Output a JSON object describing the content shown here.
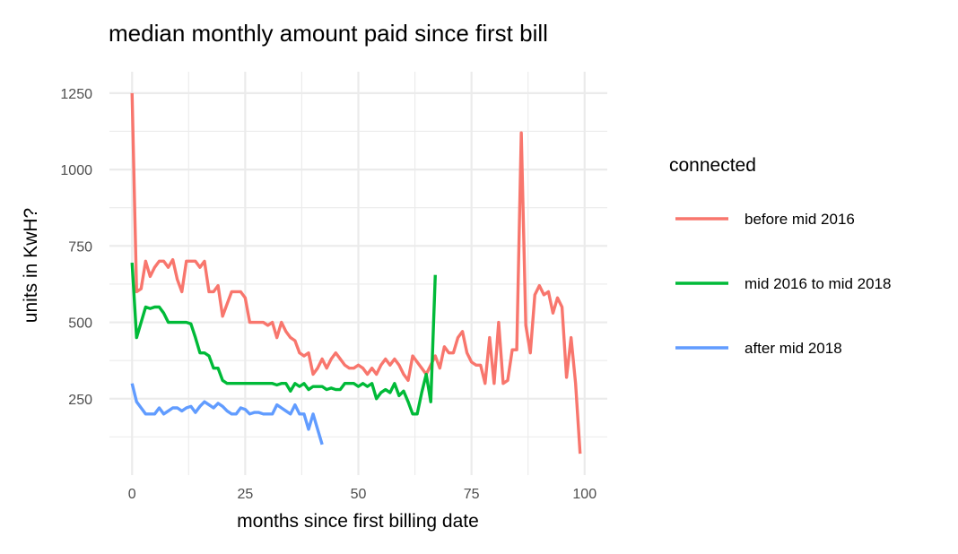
{
  "chart_data": {
    "type": "line",
    "title": "median monthly amount paid since first bill",
    "xlabel": "months since first billing date",
    "ylabel": "units in KwH?",
    "xlim": [
      -5,
      105
    ],
    "ylim": [
      0,
      1320
    ],
    "x_ticks": [
      0,
      25,
      50,
      75,
      100
    ],
    "y_ticks": [
      250,
      500,
      750,
      1000,
      1250
    ],
    "grid": true,
    "legend": {
      "title": "connected",
      "placement": "right"
    },
    "series": [
      {
        "name": "before mid 2016",
        "color": "#F8766D",
        "x": [
          0,
          1,
          2,
          3,
          4,
          5,
          6,
          7,
          8,
          9,
          10,
          11,
          12,
          13,
          14,
          15,
          16,
          17,
          18,
          19,
          20,
          21,
          22,
          23,
          24,
          25,
          26,
          27,
          28,
          29,
          30,
          31,
          32,
          33,
          34,
          35,
          36,
          37,
          38,
          39,
          40,
          41,
          42,
          43,
          44,
          45,
          46,
          47,
          48,
          49,
          50,
          51,
          52,
          53,
          54,
          55,
          56,
          57,
          58,
          59,
          60,
          61,
          62,
          63,
          64,
          65,
          66,
          67,
          68,
          69,
          70,
          71,
          72,
          73,
          74,
          75,
          76,
          77,
          78,
          79,
          80,
          81,
          82,
          83,
          84,
          85,
          86,
          87,
          88,
          89,
          90,
          91,
          92,
          93,
          94,
          95,
          96,
          97,
          98,
          99
        ],
        "values": [
          1250,
          600,
          610,
          700,
          650,
          680,
          700,
          700,
          680,
          705,
          640,
          600,
          700,
          700,
          700,
          680,
          700,
          600,
          600,
          620,
          520,
          560,
          600,
          600,
          600,
          580,
          500,
          500,
          500,
          500,
          490,
          500,
          450,
          500,
          470,
          450,
          440,
          400,
          390,
          400,
          330,
          350,
          380,
          350,
          380,
          400,
          380,
          360,
          350,
          350,
          360,
          350,
          330,
          350,
          330,
          360,
          380,
          360,
          380,
          360,
          330,
          310,
          390,
          370,
          350,
          330,
          360,
          390,
          350,
          420,
          400,
          400,
          450,
          470,
          400,
          370,
          360,
          360,
          300,
          450,
          300,
          500,
          300,
          310,
          410,
          410,
          1120,
          490,
          400,
          590,
          620,
          590,
          600,
          530,
          580,
          550,
          320,
          450,
          300,
          70
        ]
      },
      {
        "name": "mid 2016 to mid 2018",
        "color": "#00BA38",
        "x": [
          0,
          1,
          2,
          3,
          4,
          5,
          6,
          7,
          8,
          9,
          10,
          11,
          12,
          13,
          14,
          15,
          16,
          17,
          18,
          19,
          20,
          21,
          22,
          23,
          24,
          25,
          26,
          27,
          28,
          29,
          30,
          31,
          32,
          33,
          34,
          35,
          36,
          37,
          38,
          39,
          40,
          41,
          42,
          43,
          44,
          45,
          46,
          47,
          48,
          49,
          50,
          51,
          52,
          53,
          54,
          55,
          56,
          57,
          58,
          59,
          60,
          61,
          62,
          63,
          64,
          65,
          66,
          67
        ],
        "values": [
          695,
          450,
          500,
          550,
          545,
          550,
          550,
          530,
          500,
          500,
          500,
          500,
          500,
          495,
          450,
          400,
          400,
          390,
          350,
          350,
          310,
          300,
          300,
          300,
          300,
          300,
          300,
          300,
          300,
          300,
          300,
          300,
          295,
          300,
          300,
          275,
          300,
          290,
          300,
          280,
          290,
          290,
          290,
          280,
          285,
          280,
          280,
          300,
          300,
          300,
          290,
          300,
          290,
          300,
          250,
          270,
          280,
          270,
          300,
          260,
          275,
          240,
          200,
          200,
          270,
          330,
          240,
          655
        ]
      },
      {
        "name": "after mid 2018",
        "color": "#619CFF",
        "x": [
          0,
          1,
          2,
          3,
          4,
          5,
          6,
          7,
          8,
          9,
          10,
          11,
          12,
          13,
          14,
          15,
          16,
          17,
          18,
          19,
          20,
          21,
          22,
          23,
          24,
          25,
          26,
          27,
          28,
          29,
          30,
          31,
          32,
          33,
          34,
          35,
          36,
          37,
          38,
          39,
          40,
          41,
          42
        ],
        "values": [
          300,
          240,
          220,
          200,
          200,
          200,
          220,
          200,
          210,
          220,
          220,
          210,
          220,
          225,
          205,
          225,
          240,
          230,
          220,
          235,
          225,
          210,
          200,
          200,
          220,
          215,
          200,
          205,
          205,
          200,
          200,
          200,
          230,
          220,
          210,
          200,
          230,
          200,
          200,
          150,
          200,
          150,
          100
        ]
      }
    ]
  }
}
